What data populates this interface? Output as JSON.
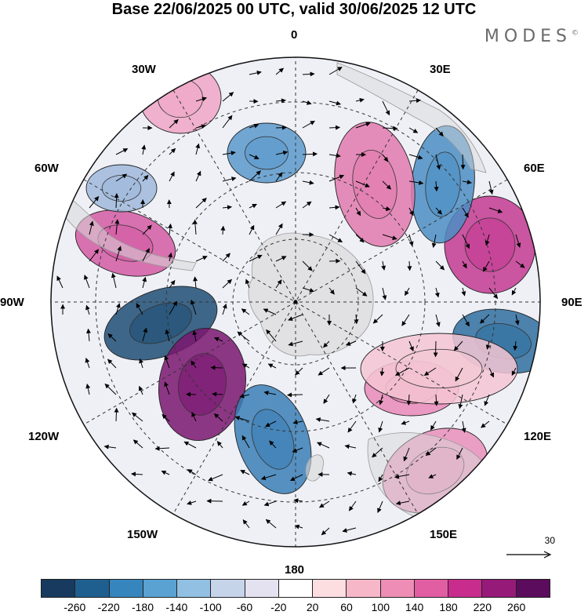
{
  "title": "Base 22/06/2025 00 UTC, valid 30/06/2025 12 UTC",
  "brand": {
    "name": "MODES",
    "mark": "©"
  },
  "longitude_labels": {
    "n0": "0",
    "n30e": "30E",
    "n60e": "60E",
    "n90e": "90E",
    "n120e": "120E",
    "n150e": "150E",
    "n180": "180",
    "n150w": "150W",
    "n120w": "120W",
    "n90w": "90W",
    "n60w": "60W",
    "n30w": "30W"
  },
  "wind_reference": {
    "value": "30"
  },
  "colorbar": {
    "colors": [
      "#173a5e",
      "#1f5f8f",
      "#3685bd",
      "#5aa2d2",
      "#92c0e3",
      "#c6d4ea",
      "#e4e2f0",
      "#ffffff",
      "#fcdde0",
      "#f6b8c9",
      "#ee8db5",
      "#e15ea2",
      "#c82d8d",
      "#961a78",
      "#5b0c5c"
    ],
    "labels": [
      "-260",
      "-220",
      "-180",
      "-140",
      "-100",
      "-60",
      "-20",
      "20",
      "60",
      "100",
      "140",
      "180",
      "220",
      "260"
    ]
  },
  "anomaly_centers": [
    {
      "value": -240,
      "color": "#1f4e74"
    },
    {
      "value": 220,
      "color": "#7a1670"
    },
    {
      "value": -200,
      "color": "#2f6f9f"
    },
    {
      "value": 180,
      "color": "#c33a92"
    },
    {
      "value": -180,
      "color": "#3a7fb6"
    },
    {
      "value": 160,
      "color": "#d45aa3"
    },
    {
      "value": -160,
      "color": "#4b8ec3"
    },
    {
      "value": 140,
      "color": "#e27aae"
    },
    {
      "value": 120,
      "color": "#e989b8"
    },
    {
      "value": -140,
      "color": "#5b99cb"
    },
    {
      "value": 100,
      "color": "#eea6c6"
    },
    {
      "value": 120,
      "color": "#ea8fbb"
    },
    {
      "value": -80,
      "color": "#9fb8da"
    },
    {
      "value": 60,
      "color": "#f4c6d3"
    }
  ]
}
